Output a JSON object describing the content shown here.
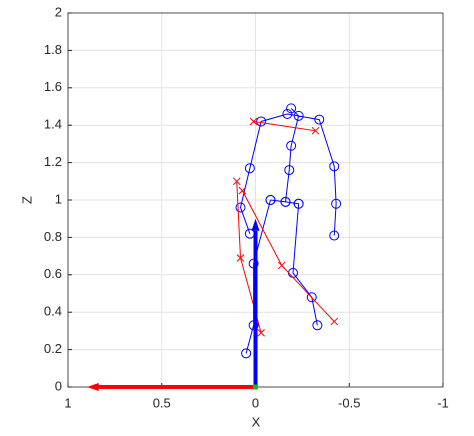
{
  "chart_data": {
    "type": "line",
    "xlabel": "X",
    "ylabel": "Z",
    "xlim": [
      1,
      -1
    ],
    "ylim": [
      0,
      2
    ],
    "xticks": [
      1,
      0.5,
      0,
      -0.5,
      -1
    ],
    "yticks": [
      0,
      0.2,
      0.4,
      0.6,
      0.8,
      1,
      1.2,
      1.4,
      1.6,
      1.8,
      2
    ],
    "grid": true,
    "series": [
      {
        "color": "#0000ff",
        "marker": "o",
        "x": [
          0.03,
          0.08,
          0.03,
          -0.03,
          -0.17,
          -0.34,
          -0.42,
          -0.43,
          -0.42,
          null,
          -0.19,
          -0.23,
          -0.19,
          -0.18,
          -0.16,
          null,
          -0.08,
          -0.16,
          -0.23,
          null,
          -0.08,
          0.01,
          0.01,
          0.05,
          null,
          -0.23,
          -0.2,
          -0.3,
          -0.33
        ],
        "y": [
          0.82,
          0.96,
          1.17,
          1.42,
          1.46,
          1.43,
          1.18,
          0.98,
          0.81,
          null,
          1.49,
          1.45,
          1.29,
          1.16,
          0.99,
          null,
          1.0,
          0.99,
          0.98,
          null,
          1.0,
          0.66,
          0.33,
          0.18,
          null,
          0.98,
          0.61,
          0.48,
          0.33
        ]
      },
      {
        "color": "#ff0000",
        "marker": "x",
        "x": [
          0.01,
          -0.32,
          null,
          0.07,
          -0.14,
          -0.42,
          null,
          0.1,
          0.08,
          -0.03
        ],
        "y": [
          1.42,
          1.37,
          null,
          1.05,
          0.65,
          0.35,
          null,
          1.1,
          0.69,
          0.29
        ]
      }
    ],
    "arrows": [
      {
        "color": "#ff0000",
        "x": 0,
        "y": 0,
        "u": 0.9,
        "v": 0
      },
      {
        "color": "#0000ff",
        "x": 0,
        "y": 0,
        "u": 0,
        "v": 0.9
      },
      {
        "color": "#00cc00",
        "x": 0,
        "y": 0,
        "u": 0,
        "v": 0
      }
    ]
  }
}
